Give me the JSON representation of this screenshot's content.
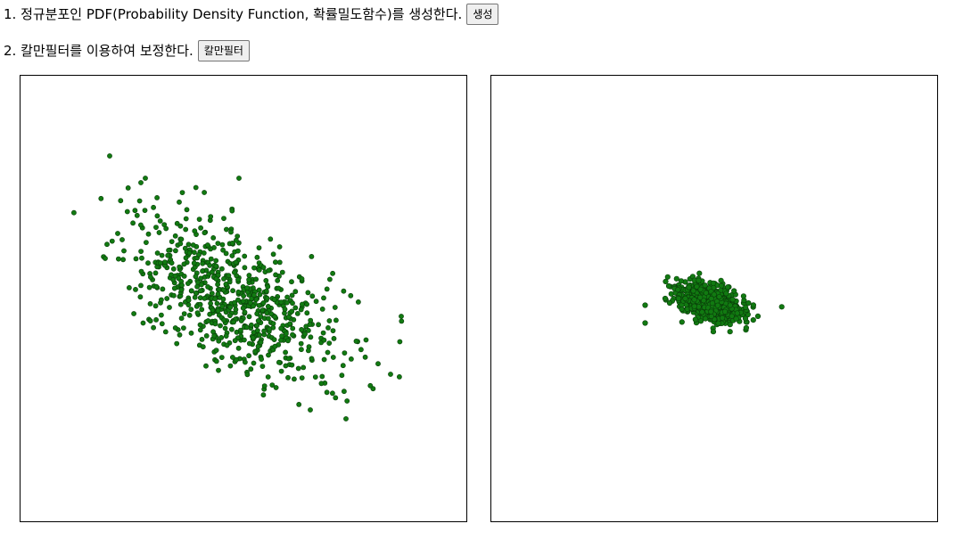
{
  "steps": [
    {
      "text": "1. 정규분포인 PDF(Probability Density Function, 확률밀도함수)를 생성한다.",
      "button": "생성"
    },
    {
      "text": "2. 칼만필터를 이용하여 보정한다.",
      "button": "칼만필터"
    }
  ],
  "colors": {
    "dot_fill": "#117a11",
    "dot_stroke": "#0a3d0a",
    "frame": "#000000"
  },
  "chart_data": [
    {
      "type": "scatter",
      "title": "",
      "description_units": "plot units 0-100 on both axes, y increases downward",
      "distribution": {
        "kind": "bivariate-normal",
        "count": 700,
        "mean": [
          48,
          50
        ],
        "std": [
          12,
          9
        ],
        "correlation": 0.55,
        "seed": 7
      },
      "outliers": [
        [
          20,
          18
        ],
        [
          19,
          41
        ],
        [
          27,
          24
        ],
        [
          83,
          67
        ],
        [
          73,
          77
        ],
        [
          65,
          75
        ],
        [
          28,
          23
        ],
        [
          49,
          23
        ]
      ]
    },
    {
      "type": "scatter",
      "title": "",
      "description_units": "plot units 0-100 on both axes, y increases downward",
      "distribution": {
        "kind": "bivariate-normal",
        "count": 700,
        "mean": [
          49,
          51
        ],
        "std": [
          3.5,
          2.2
        ],
        "correlation": 0.4,
        "seed": 11
      },
      "outliers": [
        [
          34.5,
          51.5
        ],
        [
          34.5,
          55.5
        ],
        [
          39,
          50
        ],
        [
          40,
          51
        ],
        [
          42,
          50
        ],
        [
          43.5,
          50
        ],
        [
          57,
          54.5
        ]
      ]
    }
  ]
}
